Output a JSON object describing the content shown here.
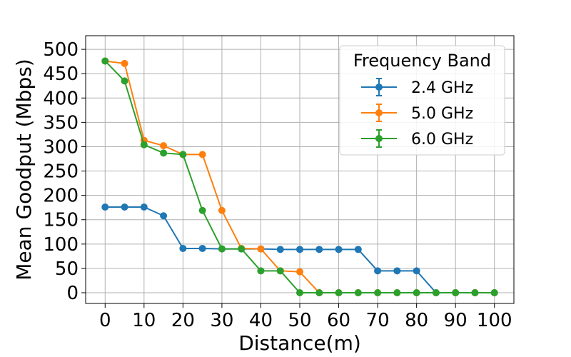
{
  "chart_data": {
    "type": "line",
    "title": "",
    "xlabel": "Distance(m)",
    "ylabel": "Mean Goodput (Mbps)",
    "x": [
      0,
      5,
      10,
      15,
      20,
      25,
      30,
      35,
      40,
      45,
      50,
      55,
      60,
      65,
      70,
      75,
      80,
      85,
      90,
      95,
      100
    ],
    "xlim": [
      -5,
      105
    ],
    "ylim": [
      -22,
      528
    ],
    "xticks": [
      0,
      10,
      20,
      30,
      40,
      50,
      60,
      70,
      80,
      90,
      100
    ],
    "yticks": [
      0,
      50,
      100,
      150,
      200,
      250,
      300,
      350,
      400,
      450,
      500
    ],
    "xtick_labels": [
      "0",
      "10",
      "20",
      "30",
      "40",
      "50",
      "60",
      "70",
      "80",
      "90",
      "100"
    ],
    "ytick_labels": [
      "0",
      "50",
      "100",
      "150",
      "200",
      "250",
      "300",
      "350",
      "400",
      "450",
      "500"
    ],
    "grid": true,
    "legend": {
      "title": "Frequency Band",
      "position": "top-right"
    },
    "series": [
      {
        "name": "2.4 GHz",
        "color": "#1f77b4",
        "values": [
          176,
          176,
          176,
          158,
          91,
          91,
          90,
          90,
          90,
          89,
          89,
          89,
          89,
          89,
          45,
          45,
          45,
          0,
          0,
          0,
          0
        ]
      },
      {
        "name": "5.0 GHz",
        "color": "#ff7f0e",
        "values": [
          476,
          471,
          313,
          302,
          284,
          284,
          169,
          91,
          90,
          45,
          43,
          0,
          0,
          0,
          0,
          0,
          0,
          0,
          0,
          0,
          0
        ]
      },
      {
        "name": "6.0 GHz",
        "color": "#2ca02c",
        "values": [
          476,
          435,
          304,
          287,
          284,
          169,
          90,
          90,
          45,
          45,
          0,
          0,
          0,
          0,
          0,
          0,
          0,
          0,
          0,
          0,
          0
        ]
      }
    ]
  }
}
